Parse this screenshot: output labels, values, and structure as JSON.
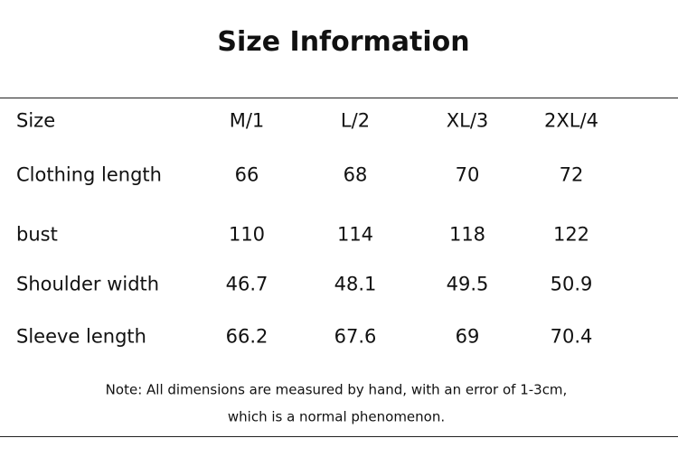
{
  "title": "Size Information",
  "table": {
    "header": [
      "Size",
      "M/1",
      "L/2",
      "XL/3",
      "2XL/4"
    ],
    "rows": [
      [
        "Clothing length",
        "66",
        "68",
        "70",
        "72"
      ],
      [
        "bust",
        "110",
        "114",
        "118",
        "122"
      ],
      [
        "Shoulder width",
        "46.7",
        "48.1",
        "49.5",
        "50.9"
      ],
      [
        "Sleeve length",
        "66.2",
        "67.6",
        "69",
        "70.4"
      ]
    ]
  },
  "note": [
    "Note: All dimensions are measured by hand, with an error of 1-3cm,",
    "which is a normal phenomenon."
  ]
}
